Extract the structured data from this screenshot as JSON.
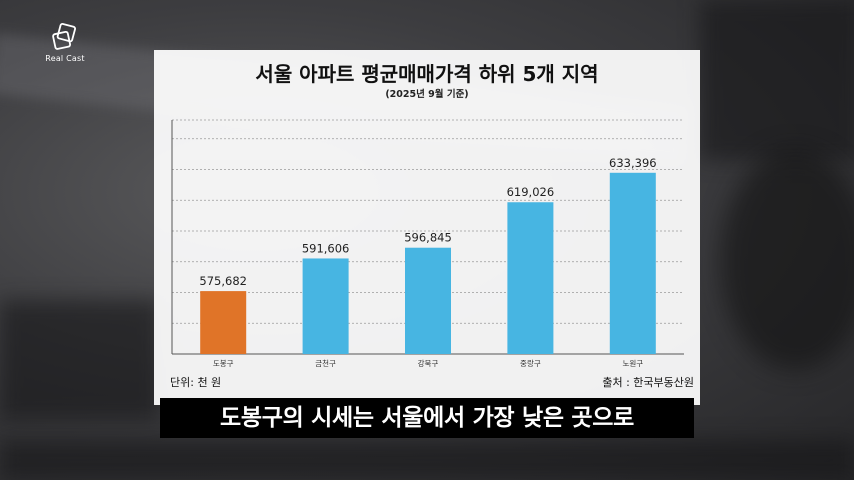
{
  "brand": {
    "name": "Real Cast"
  },
  "chart_data": {
    "type": "bar",
    "title": "서울 아파트 평균매매가격 하위 5개 지역",
    "subtitle": "(2025년 9월 기준)",
    "categories": [
      "도봉구",
      "금천구",
      "강북구",
      "중랑구",
      "노원구"
    ],
    "values": [
      575682,
      591606,
      596845,
      619026,
      633396
    ],
    "value_labels": [
      "575,682",
      "591,606",
      "596,845",
      "619,026",
      "633,396"
    ],
    "ylim": [
      545000,
      665000
    ],
    "gridlines": [
      560000,
      575000,
      590000,
      605000,
      620000,
      635000,
      650000
    ],
    "grid": true,
    "colors": {
      "highlight": "#E07428",
      "default": "#47B5E2",
      "highlight_index": 0
    },
    "unit_label": "단위: 천 원",
    "source_label": "출처 : 한국부동산원"
  },
  "caption": {
    "text": "도봉구의 시세는 서울에서 가장 낮은 곳으로"
  }
}
